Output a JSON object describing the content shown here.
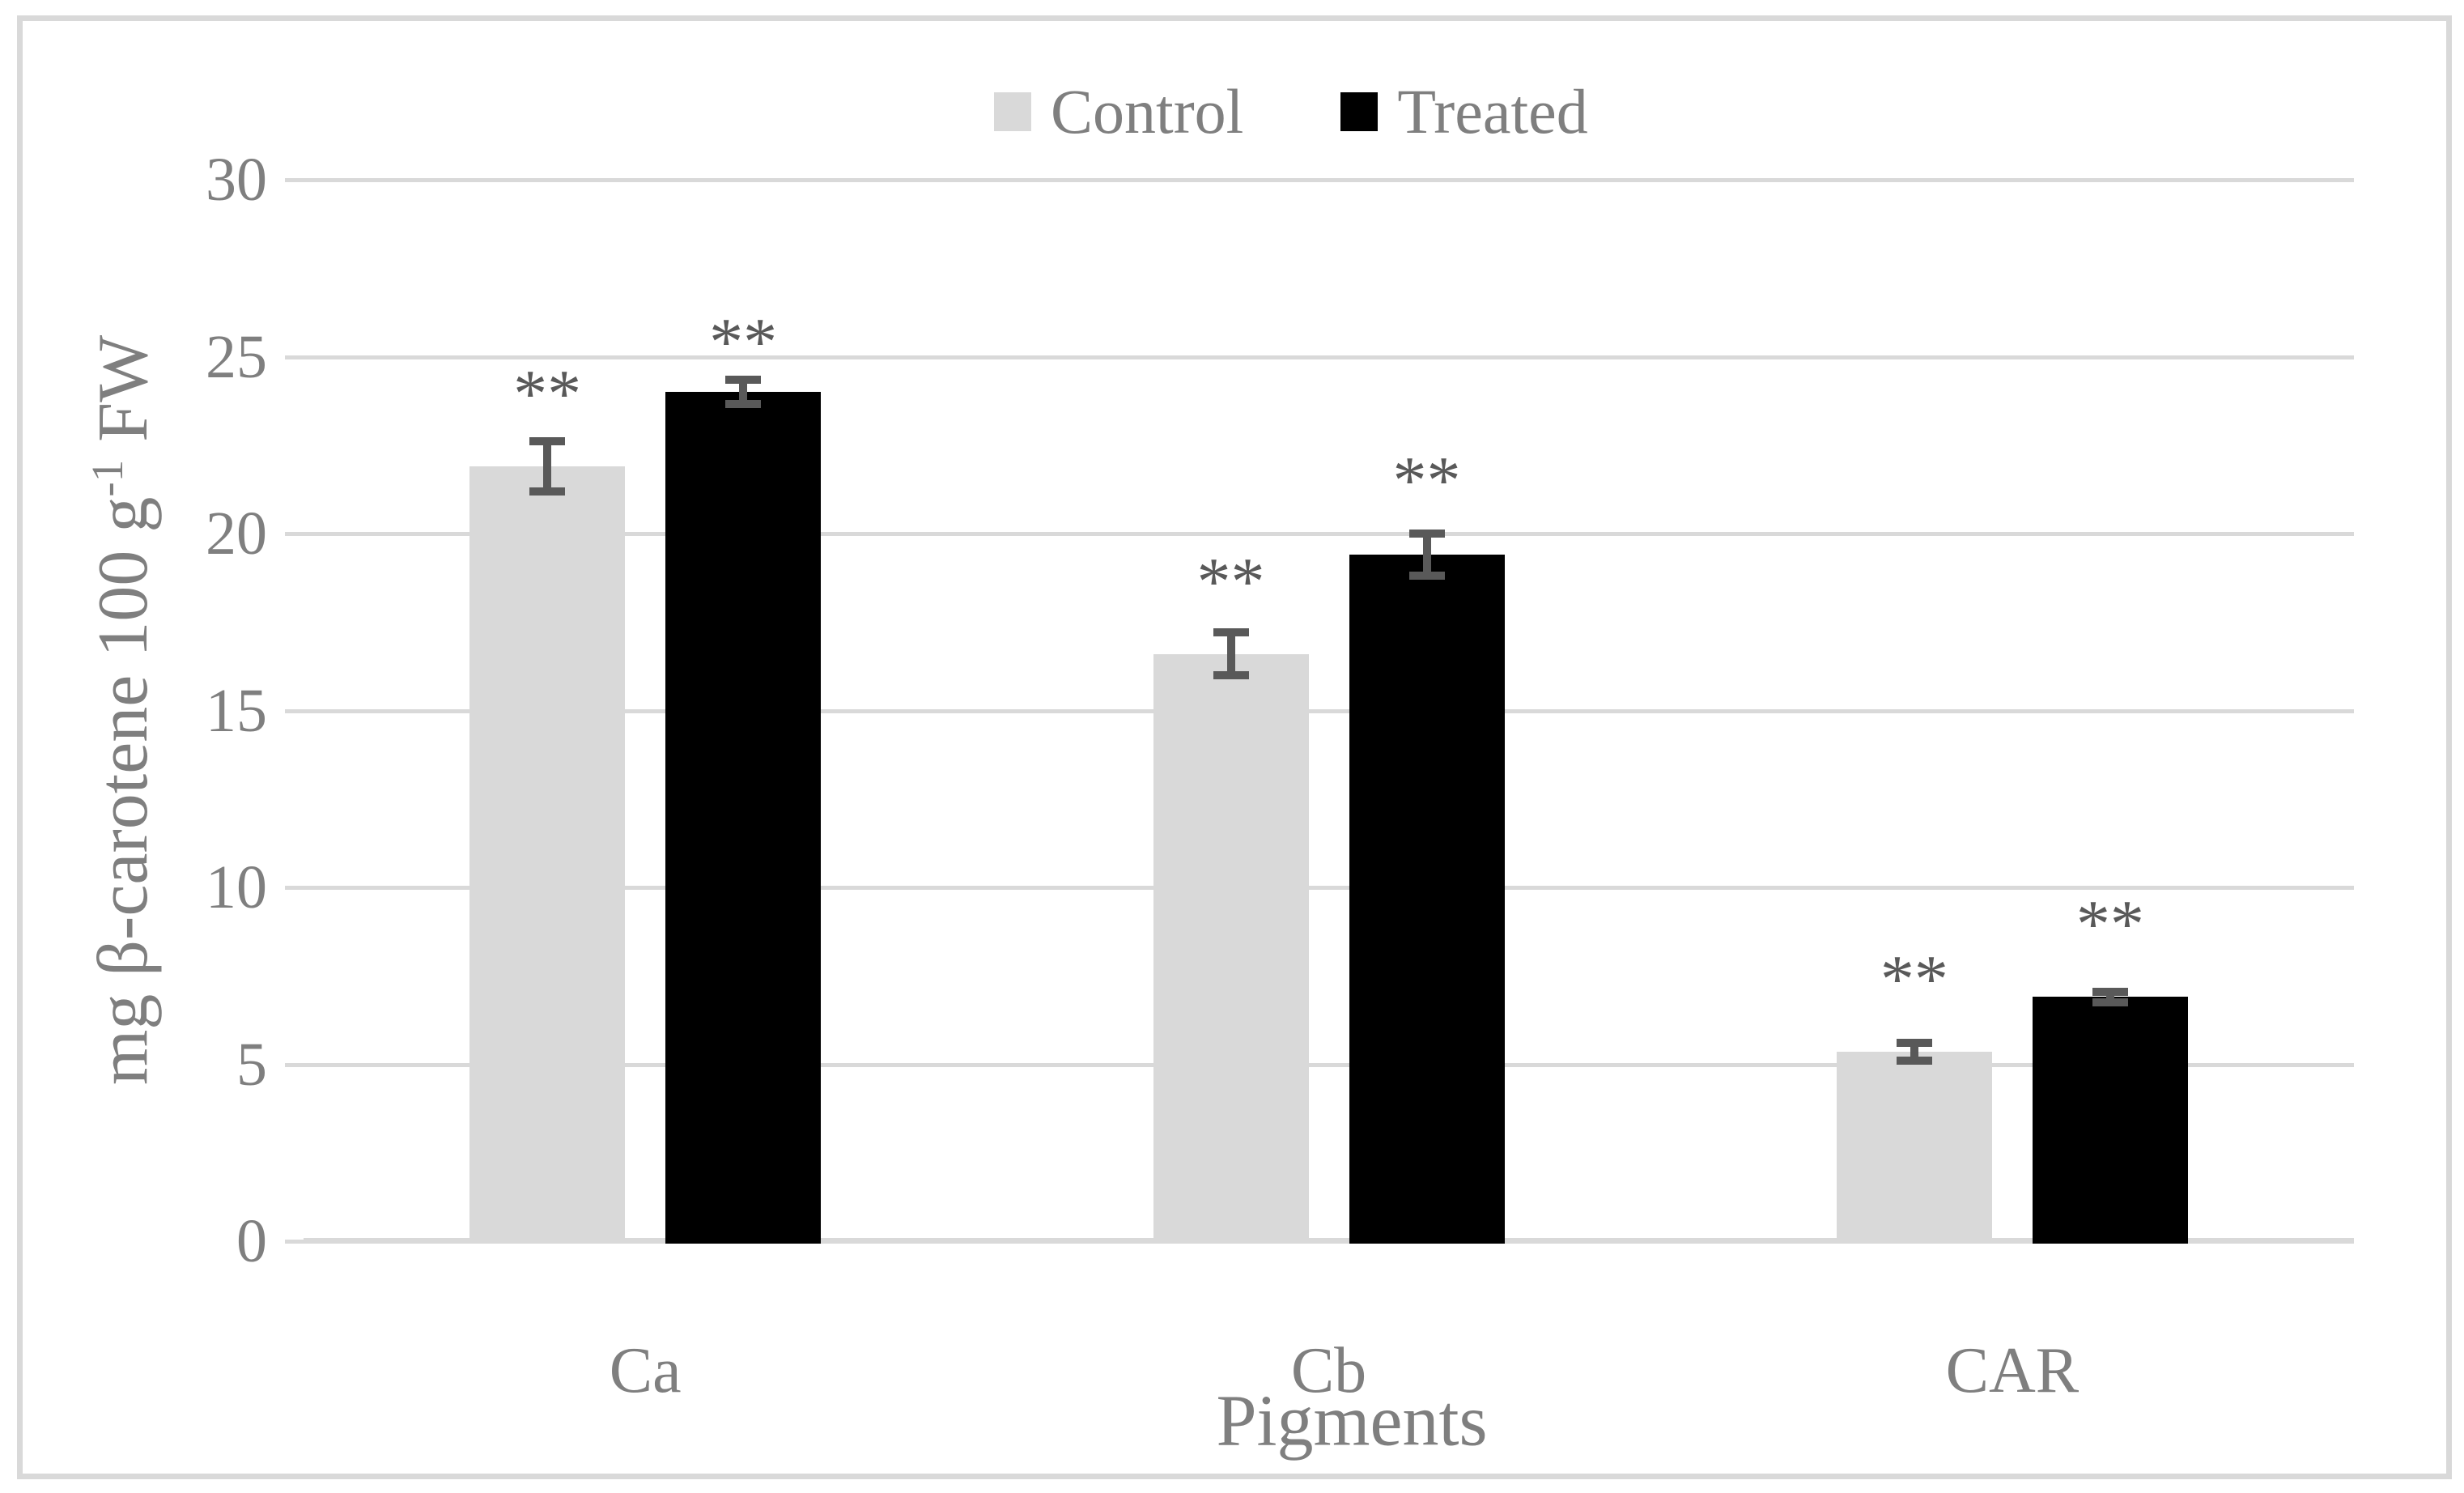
{
  "figure": {
    "frame_color": "#d9d9d9",
    "background": "#ffffff"
  },
  "legend": {
    "position": "top-center",
    "items": [
      {
        "label": "Control",
        "color": "#d9d9d9"
      },
      {
        "label": "Treated",
        "color": "#000000"
      }
    ]
  },
  "y_axis": {
    "title_prefix": "mg β-carotene 100 g",
    "title_sup": "-1",
    "title_suffix": " FW",
    "min": 0,
    "max": 30,
    "tick_step": 5,
    "ticks": [
      0,
      5,
      10,
      15,
      20,
      25,
      30
    ]
  },
  "x_axis": {
    "title": "Pigments",
    "categories": [
      "Ca",
      "Cb",
      "CAR"
    ]
  },
  "chart_data": {
    "type": "bar",
    "title": "",
    "categories": [
      "Ca",
      "Cb",
      "CAR"
    ],
    "series": [
      {
        "name": "Control",
        "color": "#d9d9d9",
        "values": [
          21.9,
          16.6,
          5.35
        ],
        "errors": [
          0.7,
          0.6,
          0.25
        ],
        "significance": [
          "**",
          "**",
          "**"
        ]
      },
      {
        "name": "Treated",
        "color": "#000000",
        "values": [
          24.0,
          19.4,
          6.9
        ],
        "errors": [
          0.35,
          0.6,
          0.15
        ],
        "significance": [
          "**",
          "**",
          "**"
        ]
      }
    ],
    "xlabel": "Pigments",
    "ylabel": "mg β-carotene 100 g-1 FW",
    "ylim": [
      0,
      30
    ],
    "gridlines": true,
    "legend_position": "top",
    "grid_color": "#d9d9d9",
    "error_bar_color": "#595959",
    "sig_color": "#595959",
    "text_color": "#7f7f7f"
  }
}
